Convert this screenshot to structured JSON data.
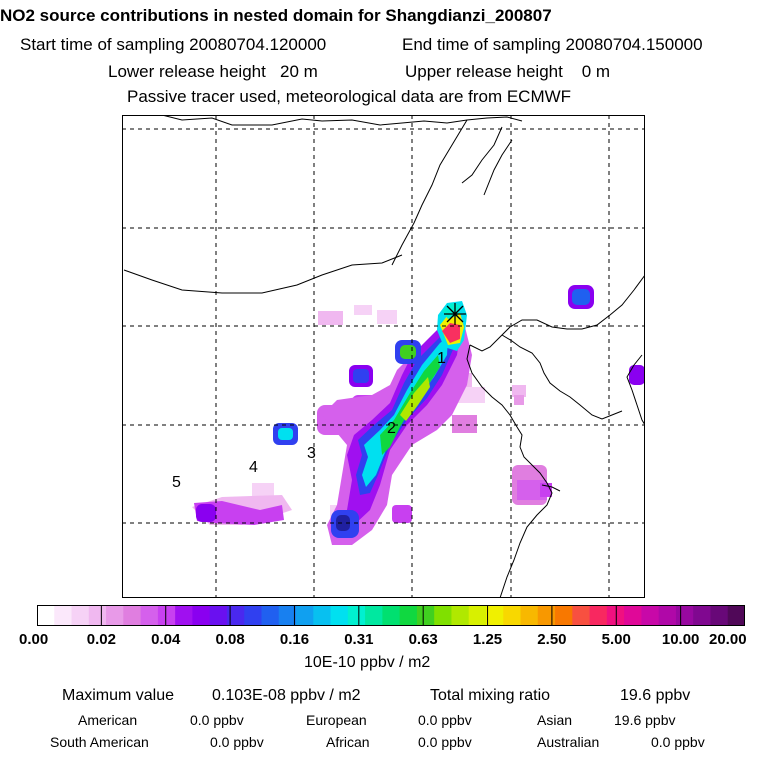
{
  "header": {
    "title": "NO2 source contributions in nested domain for Shangdianzi_200807",
    "start_label": "Start time of sampling",
    "start_value": "20080704.120000",
    "end_label": "End time of sampling",
    "end_value": "20080704.150000",
    "lower_label": "Lower release height",
    "lower_value": "20 m",
    "upper_label": "Upper release height",
    "upper_value": "0 m",
    "note": "Passive tracer used, meteorological data are from ECMWF"
  },
  "map": {
    "region_labels": [
      "1",
      "2",
      "3",
      "4",
      "5"
    ],
    "receptor_marker": "star-marker"
  },
  "colorbar": {
    "ticks": [
      "0.00",
      "0.02",
      "0.04",
      "0.08",
      "0.16",
      "0.31",
      "0.63",
      "1.25",
      "2.50",
      "5.00",
      "10.00",
      "20.00"
    ],
    "units": "10E-10 ppbv / m2",
    "colors": [
      "#ffffff",
      "#fbe8fb",
      "#f6d2f6",
      "#f0b8f0",
      "#e89ae8",
      "#e07ee0",
      "#d560ec",
      "#c840f0",
      "#a010f0",
      "#8a00f0",
      "#6a10f0",
      "#4a28ef",
      "#3040f0",
      "#2060f0",
      "#1880f0",
      "#10a0f0",
      "#08c0f0",
      "#00e0f0",
      "#00f0d0",
      "#00e8a0",
      "#00e070",
      "#10d840",
      "#40d020",
      "#80e000",
      "#b0e800",
      "#d8f000",
      "#f0f000",
      "#f8d800",
      "#f8b800",
      "#f89800",
      "#f87800",
      "#f85040",
      "#f82860",
      "#f01080",
      "#e00898",
      "#c808a8",
      "#b008a8",
      "#9808a0",
      "#800890",
      "#680878",
      "#500858"
    ]
  },
  "summary": {
    "max_label": "Maximum value",
    "max_value": "0.103E-08 ppbv / m2",
    "total_label": "Total mixing ratio",
    "total_value": "19.6 ppbv",
    "american_label": "American",
    "american_value": "0.0 ppbv",
    "european_label": "European",
    "european_value": "0.0 ppbv",
    "asian_label": "Asian",
    "asian_value": "19.6 ppbv",
    "south_american_label": "South American",
    "south_american_value": "0.0 ppbv",
    "african_label": "African",
    "african_value": "0.0 ppbv",
    "australian_label": "Australian",
    "australian_value": "0.0 ppbv"
  }
}
